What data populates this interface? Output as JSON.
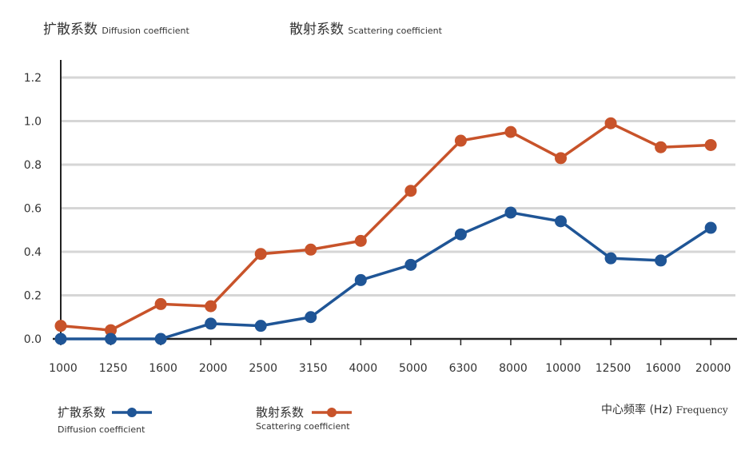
{
  "header": {
    "diffusion_cn": "扩散系数",
    "diffusion_en": "Diffusion coefficient",
    "scattering_cn": "散射系数",
    "scattering_en": "Scattering coefficient"
  },
  "chart_data": {
    "type": "line",
    "categories": [
      "1000",
      "1250",
      "1600",
      "2000",
      "2500",
      "3150",
      "4000",
      "5000",
      "6300",
      "8000",
      "10000",
      "12500",
      "16000",
      "20000"
    ],
    "yticks": [
      "0.0",
      "0.2",
      "0.4",
      "0.6",
      "0.8",
      "1.0",
      "1.2"
    ],
    "ylim": [
      0,
      1.2
    ],
    "grid": true,
    "xlabel_cn": "中心频率 (Hz)",
    "xlabel_en": "Frequency",
    "series": [
      {
        "name": "扩散系数 Diffusion coefficient",
        "color": "#1f5596",
        "values": [
          0,
          0,
          0,
          0.07,
          0.06,
          0.1,
          0.27,
          0.34,
          0.48,
          0.58,
          0.54,
          0.37,
          0.36,
          0.51
        ]
      },
      {
        "name": "散射系数 Scattering coefficient",
        "color": "#c8532a",
        "values": [
          0.06,
          0.04,
          0.16,
          0.15,
          0.39,
          0.41,
          0.45,
          0.68,
          0.91,
          0.95,
          0.83,
          0.99,
          0.88,
          0.89
        ]
      }
    ],
    "legend": "bottom"
  }
}
